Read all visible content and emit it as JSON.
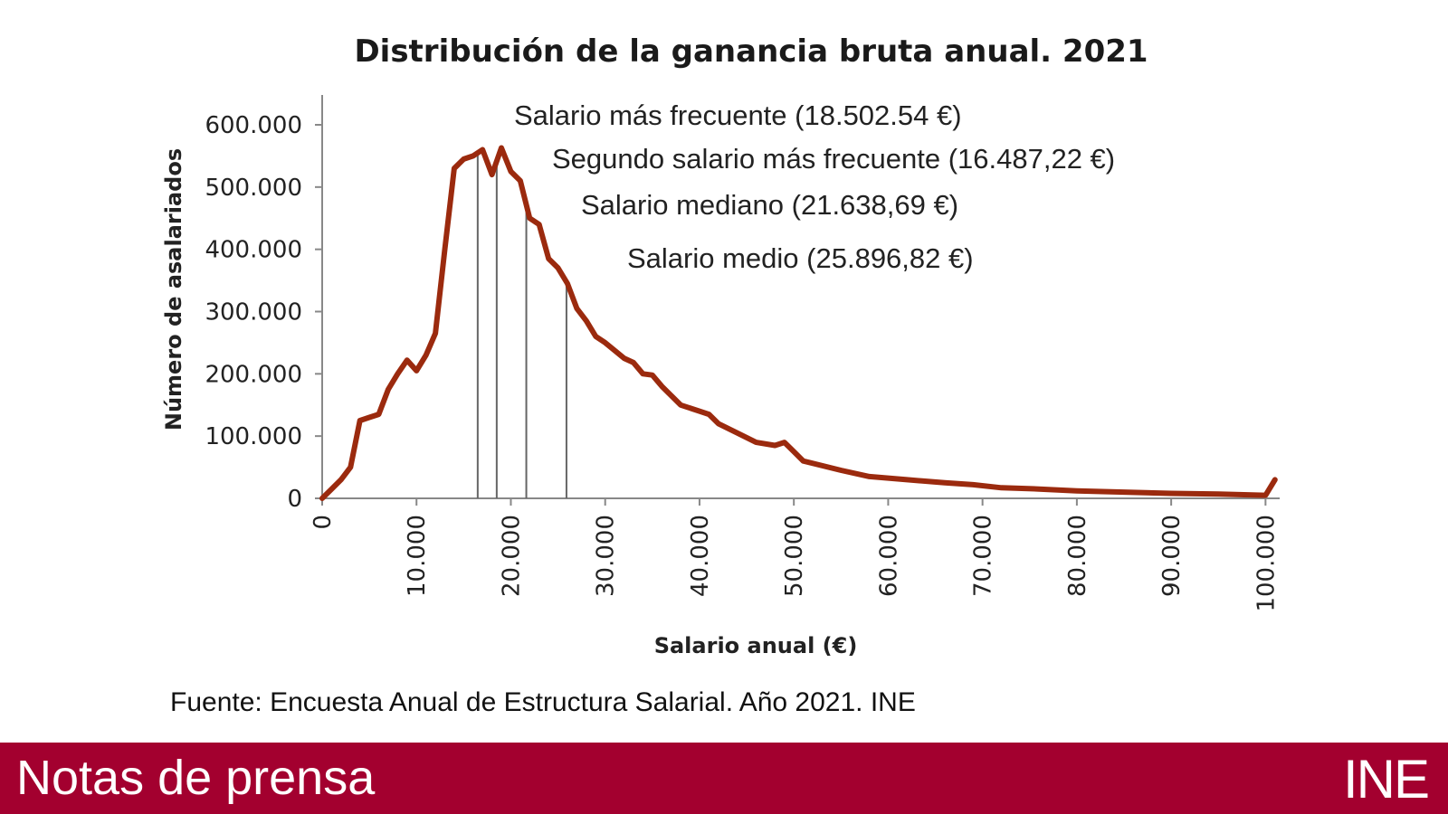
{
  "chart_data": {
    "type": "line",
    "title": "Distribución de la ganancia bruta anual. 2021",
    "xlabel": "Salario anual (€)",
    "ylabel": "Número de asalariados",
    "xlim": [
      0,
      101500
    ],
    "ylim": [
      0,
      600000
    ],
    "x_ticks": [
      "0",
      "10.000",
      "20.000",
      "30.000",
      "40.000",
      "50.000",
      "60.000",
      "70.000",
      "80.000",
      "90.000",
      "100.000"
    ],
    "x_tick_values": [
      0,
      10000,
      20000,
      30000,
      40000,
      50000,
      60000,
      70000,
      80000,
      90000,
      100000
    ],
    "y_ticks": [
      "0",
      "100.000",
      "200.000",
      "300.000",
      "400.000",
      "500.000",
      "600.000"
    ],
    "y_tick_values": [
      0,
      100000,
      200000,
      300000,
      400000,
      500000,
      600000
    ],
    "grid": false,
    "series": [
      {
        "color": "#9b2a0e",
        "points": [
          [
            0,
            0
          ],
          [
            1000,
            15000
          ],
          [
            2000,
            30000
          ],
          [
            3000,
            50000
          ],
          [
            4000,
            125000
          ],
          [
            5000,
            130000
          ],
          [
            6000,
            135000
          ],
          [
            7000,
            175000
          ],
          [
            8000,
            200000
          ],
          [
            9000,
            222000
          ],
          [
            10000,
            205000
          ],
          [
            11000,
            230000
          ],
          [
            12000,
            265000
          ],
          [
            13000,
            400000
          ],
          [
            14000,
            530000
          ],
          [
            15000,
            545000
          ],
          [
            16000,
            550000
          ],
          [
            17000,
            560000
          ],
          [
            18000,
            520000
          ],
          [
            19000,
            563000
          ],
          [
            20000,
            525000
          ],
          [
            21000,
            510000
          ],
          [
            22000,
            450000
          ],
          [
            23000,
            440000
          ],
          [
            24000,
            385000
          ],
          [
            25000,
            370000
          ],
          [
            26000,
            345000
          ],
          [
            27000,
            305000
          ],
          [
            28000,
            285000
          ],
          [
            29000,
            260000
          ],
          [
            30000,
            250000
          ],
          [
            32000,
            225000
          ],
          [
            33000,
            218000
          ],
          [
            34000,
            200000
          ],
          [
            35000,
            198000
          ],
          [
            36000,
            180000
          ],
          [
            38000,
            150000
          ],
          [
            40000,
            140000
          ],
          [
            41000,
            135000
          ],
          [
            42000,
            120000
          ],
          [
            44000,
            105000
          ],
          [
            46000,
            90000
          ],
          [
            48000,
            85000
          ],
          [
            49000,
            90000
          ],
          [
            50000,
            75000
          ],
          [
            51000,
            60000
          ],
          [
            55000,
            45000
          ],
          [
            58000,
            35000
          ],
          [
            62000,
            30000
          ],
          [
            66000,
            25000
          ],
          [
            69000,
            22000
          ],
          [
            72000,
            17000
          ],
          [
            76000,
            15000
          ],
          [
            80000,
            12000
          ],
          [
            85000,
            10000
          ],
          [
            90000,
            8000
          ],
          [
            95000,
            7000
          ],
          [
            100000,
            5000
          ],
          [
            101000,
            30000
          ]
        ]
      }
    ],
    "annotations": [
      {
        "text": "Salario más frecuente (18.502.54 €)",
        "x": 18502.54
      },
      {
        "text": "Segundo salario más frecuente (16.487,22 €)",
        "x": 16487.22
      },
      {
        "text": "Salario mediano (21.638,69 €)",
        "x": 21638.69
      },
      {
        "text": "Salario medio (25.896,82 €)",
        "x": 25896.82
      }
    ]
  },
  "source_note": "Fuente: Encuesta Anual de Estructura Salarial. Año 2021. INE",
  "footer": {
    "title": "Notas de prensa",
    "logo": "INE",
    "background_color": "#a3002f"
  }
}
